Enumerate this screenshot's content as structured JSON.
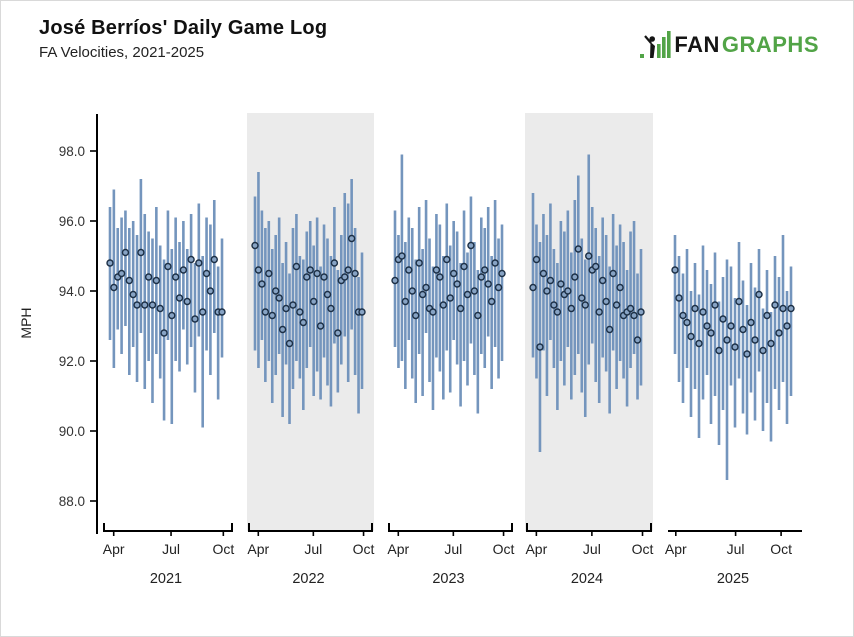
{
  "header": {
    "title": "José Berríos' Daily Game Log",
    "subtitle": "FA Velocities, 2021-2025"
  },
  "logo": {
    "fan": "FAN",
    "graphs": "GRAPHS",
    "green": "#52a447",
    "black": "#151515",
    "icon": "fangraphs-batter-bars-icon"
  },
  "chart_data": {
    "type": "candlestick",
    "title": "José Berríos' Daily Game Log",
    "subtitle": "FA Velocities, 2021-2025",
    "ylabel": "MPH",
    "xlabel": "",
    "ytick_labels": [
      "98.0",
      "96.0",
      "94.0",
      "92.0",
      "90.0",
      "88.0"
    ],
    "yticks": [
      98.0,
      96.0,
      94.0,
      92.0,
      90.0,
      88.0
    ],
    "ylim": [
      87.1,
      99.1
    ],
    "grid": false,
    "legend": "none",
    "colors": {
      "bar": "#7495bd",
      "marker_fill": "#87a3c4",
      "marker_stroke": "#1c2f45",
      "band": "#ebebeb",
      "axis": "#000000",
      "tick_text": "#333333"
    },
    "games_format": [
      "low_mph",
      "high_mph",
      "avg_mph"
    ],
    "seasons": [
      {
        "year": "2021",
        "shaded": false,
        "month_ticks": [
          "Apr",
          "Jul",
          "Oct"
        ],
        "games": [
          [
            92.6,
            96.4,
            94.8
          ],
          [
            91.8,
            96.9,
            94.1
          ],
          [
            92.9,
            95.8,
            94.4
          ],
          [
            92.2,
            96.1,
            94.5
          ],
          [
            93.0,
            96.3,
            95.1
          ],
          [
            91.6,
            95.8,
            94.3
          ],
          [
            92.4,
            96.0,
            93.9
          ],
          [
            91.4,
            95.6,
            93.6
          ],
          [
            92.8,
            97.2,
            95.1
          ],
          [
            91.2,
            96.2,
            93.6
          ],
          [
            92.0,
            95.7,
            94.4
          ],
          [
            90.8,
            95.5,
            93.6
          ],
          [
            92.2,
            96.4,
            94.3
          ],
          [
            91.5,
            95.3,
            93.5
          ],
          [
            90.3,
            94.9,
            92.8
          ],
          [
            92.6,
            96.3,
            94.7
          ],
          [
            90.2,
            95.2,
            93.3
          ],
          [
            92.0,
            96.1,
            94.4
          ],
          [
            91.7,
            95.4,
            93.8
          ],
          [
            92.9,
            96.0,
            94.6
          ],
          [
            91.9,
            95.2,
            93.7
          ],
          [
            92.4,
            96.2,
            94.9
          ],
          [
            91.1,
            94.8,
            93.2
          ],
          [
            92.7,
            96.5,
            94.8
          ],
          [
            90.1,
            95.0,
            93.4
          ],
          [
            92.3,
            96.1,
            94.5
          ],
          [
            91.6,
            95.9,
            94.0
          ],
          [
            92.8,
            96.6,
            94.9
          ],
          [
            90.9,
            94.7,
            93.4
          ],
          [
            92.1,
            95.5,
            93.4
          ]
        ]
      },
      {
        "year": "2022",
        "shaded": true,
        "month_ticks": [
          "Apr",
          "Jul",
          "Oct"
        ],
        "games": [
          [
            92.3,
            96.7,
            95.3
          ],
          [
            91.8,
            97.4,
            94.6
          ],
          [
            92.6,
            96.3,
            94.2
          ],
          [
            91.4,
            95.8,
            93.4
          ],
          [
            92.0,
            96.0,
            94.5
          ],
          [
            90.8,
            95.2,
            93.3
          ],
          [
            91.6,
            95.6,
            94.0
          ],
          [
            92.2,
            96.1,
            93.8
          ],
          [
            90.4,
            94.8,
            92.9
          ],
          [
            91.9,
            95.4,
            93.5
          ],
          [
            90.2,
            94.5,
            92.5
          ],
          [
            91.2,
            95.8,
            93.6
          ],
          [
            92.0,
            96.2,
            94.7
          ],
          [
            91.5,
            95.0,
            93.4
          ],
          [
            90.6,
            94.9,
            93.1
          ],
          [
            91.8,
            95.7,
            94.4
          ],
          [
            92.4,
            96.0,
            94.6
          ],
          [
            91.0,
            95.3,
            93.7
          ],
          [
            91.7,
            96.1,
            94.5
          ],
          [
            90.9,
            94.7,
            93.0
          ],
          [
            92.1,
            95.9,
            94.4
          ],
          [
            91.3,
            95.5,
            93.9
          ],
          [
            90.7,
            95.0,
            93.5
          ],
          [
            92.5,
            96.4,
            94.8
          ],
          [
            91.1,
            94.6,
            92.8
          ],
          [
            91.9,
            95.6,
            94.3
          ],
          [
            92.7,
            96.8,
            94.4
          ],
          [
            91.4,
            96.5,
            94.6
          ],
          [
            92.9,
            97.2,
            95.5
          ],
          [
            91.6,
            95.8,
            94.5
          ],
          [
            90.5,
            94.4,
            93.4
          ],
          [
            91.2,
            95.1,
            93.4
          ]
        ]
      },
      {
        "year": "2023",
        "shaded": false,
        "month_ticks": [
          "Apr",
          "Jul",
          "Oct"
        ],
        "games": [
          [
            92.4,
            96.3,
            94.3
          ],
          [
            91.8,
            95.6,
            94.9
          ],
          [
            92.0,
            97.9,
            95.0
          ],
          [
            91.2,
            95.4,
            93.7
          ],
          [
            92.6,
            96.1,
            94.6
          ],
          [
            91.5,
            95.8,
            94.0
          ],
          [
            90.8,
            94.9,
            93.3
          ],
          [
            92.2,
            96.4,
            94.8
          ],
          [
            91.0,
            95.2,
            93.9
          ],
          [
            92.8,
            96.6,
            94.1
          ],
          [
            91.4,
            95.5,
            93.5
          ],
          [
            90.6,
            94.7,
            93.4
          ],
          [
            92.1,
            96.2,
            94.6
          ],
          [
            91.7,
            95.9,
            94.4
          ],
          [
            90.9,
            95.0,
            93.6
          ],
          [
            92.3,
            96.5,
            94.9
          ],
          [
            91.1,
            95.3,
            93.8
          ],
          [
            92.6,
            96.0,
            94.5
          ],
          [
            91.9,
            95.7,
            94.2
          ],
          [
            90.7,
            94.8,
            93.5
          ],
          [
            92.0,
            96.3,
            94.7
          ],
          [
            91.3,
            95.1,
            93.9
          ],
          [
            92.5,
            96.7,
            95.3
          ],
          [
            91.6,
            95.4,
            94.0
          ],
          [
            90.5,
            94.6,
            93.3
          ],
          [
            92.2,
            96.1,
            94.4
          ],
          [
            91.8,
            95.8,
            94.6
          ],
          [
            92.7,
            96.4,
            94.2
          ],
          [
            91.2,
            95.0,
            93.7
          ],
          [
            92.4,
            96.6,
            94.8
          ],
          [
            91.5,
            95.5,
            94.1
          ],
          [
            92.0,
            95.9,
            94.5
          ]
        ]
      },
      {
        "year": "2024",
        "shaded": true,
        "month_ticks": [
          "Apr",
          "Jul",
          "Oct"
        ],
        "games": [
          [
            92.1,
            96.8,
            94.1
          ],
          [
            91.5,
            95.9,
            94.9
          ],
          [
            89.4,
            95.4,
            92.4
          ],
          [
            92.3,
            96.2,
            94.5
          ],
          [
            91.0,
            95.6,
            94.0
          ],
          [
            92.6,
            96.5,
            94.3
          ],
          [
            91.8,
            95.2,
            93.6
          ],
          [
            90.6,
            94.8,
            93.4
          ],
          [
            92.0,
            96.0,
            94.2
          ],
          [
            91.3,
            95.7,
            93.9
          ],
          [
            92.4,
            96.3,
            94.0
          ],
          [
            90.9,
            95.1,
            93.5
          ],
          [
            91.6,
            96.6,
            94.4
          ],
          [
            92.2,
            97.3,
            95.2
          ],
          [
            91.1,
            95.5,
            93.8
          ],
          [
            90.4,
            94.9,
            93.6
          ],
          [
            91.9,
            97.9,
            95.0
          ],
          [
            92.5,
            96.4,
            94.6
          ],
          [
            91.4,
            95.8,
            94.7
          ],
          [
            90.8,
            95.0,
            93.4
          ],
          [
            92.1,
            96.1,
            94.3
          ],
          [
            91.7,
            95.6,
            93.7
          ],
          [
            90.5,
            94.7,
            92.9
          ],
          [
            92.3,
            96.2,
            94.5
          ],
          [
            91.2,
            95.3,
            93.6
          ],
          [
            92.0,
            95.9,
            94.1
          ],
          [
            91.5,
            95.4,
            93.3
          ],
          [
            90.7,
            94.6,
            93.4
          ],
          [
            91.8,
            95.7,
            93.5
          ],
          [
            92.2,
            96.0,
            93.3
          ],
          [
            90.9,
            94.5,
            92.6
          ],
          [
            91.3,
            95.2,
            93.4
          ]
        ]
      },
      {
        "year": "2025",
        "shaded": false,
        "month_ticks": [
          "Apr",
          "Jul",
          "Oct"
        ],
        "games": [
          [
            92.2,
            95.6,
            94.6
          ],
          [
            91.4,
            95.0,
            93.8
          ],
          [
            90.8,
            94.5,
            93.3
          ],
          [
            91.8,
            95.2,
            93.1
          ],
          [
            90.4,
            94.0,
            92.7
          ],
          [
            91.2,
            94.8,
            93.5
          ],
          [
            89.8,
            93.9,
            92.5
          ],
          [
            90.9,
            95.3,
            93.4
          ],
          [
            91.6,
            94.6,
            93.0
          ],
          [
            90.2,
            94.2,
            92.8
          ],
          [
            91.0,
            95.1,
            93.6
          ],
          [
            89.6,
            93.7,
            92.3
          ],
          [
            90.6,
            94.4,
            93.2
          ],
          [
            88.6,
            94.9,
            92.6
          ],
          [
            91.3,
            94.7,
            93.0
          ],
          [
            90.1,
            93.8,
            92.4
          ],
          [
            91.5,
            95.4,
            93.7
          ],
          [
            90.5,
            94.3,
            92.9
          ],
          [
            89.9,
            93.6,
            92.2
          ],
          [
            91.1,
            94.8,
            93.1
          ],
          [
            90.3,
            94.1,
            92.6
          ],
          [
            91.7,
            95.2,
            93.9
          ],
          [
            90.0,
            93.5,
            92.3
          ],
          [
            90.8,
            94.6,
            93.3
          ],
          [
            89.7,
            93.4,
            92.5
          ],
          [
            91.2,
            95.0,
            93.6
          ],
          [
            90.6,
            94.4,
            92.8
          ],
          [
            91.4,
            95.6,
            93.5
          ],
          [
            90.2,
            94.0,
            93.0
          ],
          [
            91.0,
            94.7,
            93.5
          ]
        ]
      }
    ]
  }
}
